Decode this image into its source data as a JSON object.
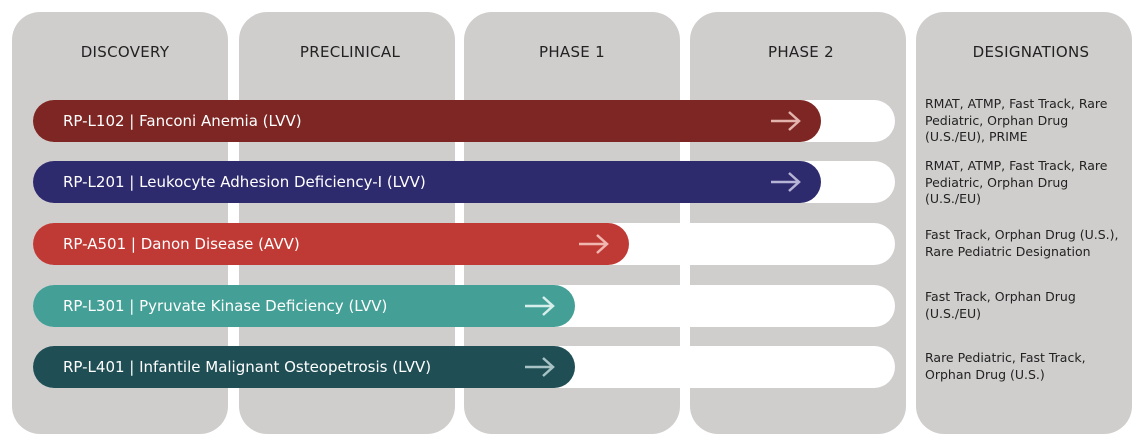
{
  "columns": [
    "DISCOVERY",
    "PRECLINICAL",
    "PHASE 1",
    "PHASE 2",
    "DESIGNATIONS"
  ],
  "programs": [
    {
      "label": "RP-L102 | Fanconi Anemia (LVV)",
      "designations": "RMAT, ATMP, Fast Track, Rare Pediatric, Orphan Drug (U.S./EU), PRIME"
    },
    {
      "label": "RP-L201 | Leukocyte Adhesion Deficiency-I (LVV)",
      "designations": "RMAT, ATMP, Fast Track, Rare Pediatric, Orphan Drug (U.S./EU)"
    },
    {
      "label": "RP-A501 | Danon Disease (AVV)",
      "designations": "Fast Track, Orphan Drug (U.S.), Rare Pediatric Designation"
    },
    {
      "label": "RP-L301 | Pyruvate Kinase Deficiency (LVV)",
      "designations": "Fast Track, Orphan Drug (U.S./EU)"
    },
    {
      "label": "RP-L401 | Infantile Malignant Osteopetrosis (LVV)",
      "designations": "Rare Pediatric, Fast Track, Orphan Drug (U.S.)"
    }
  ]
}
